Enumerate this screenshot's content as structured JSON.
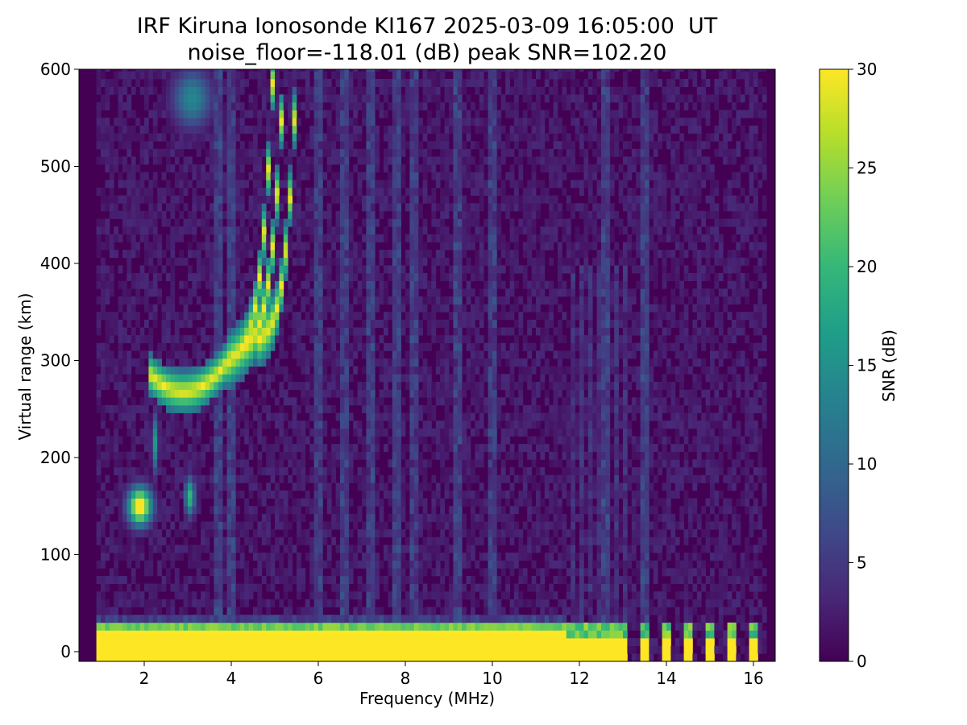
{
  "chart_data": {
    "type": "heatmap",
    "title": "IRF Kiruna Ionosonde KI167 2025-03-09 16:05:00  UT",
    "subtitle": "noise_floor=-118.01 (dB) peak SNR=102.20",
    "xlabel": "Frequency (MHz)",
    "ylabel": "Virtual range (km)",
    "xlim": [
      0.5,
      16.5
    ],
    "ylim": [
      -10,
      600
    ],
    "x_ticks": [
      2,
      4,
      6,
      8,
      10,
      12,
      14,
      16
    ],
    "y_ticks": [
      0,
      100,
      200,
      300,
      400,
      500,
      600
    ],
    "colorbar": {
      "label": "SNR (dB)",
      "range": [
        0,
        30
      ],
      "ticks": [
        0,
        5,
        10,
        15,
        20,
        25,
        30
      ],
      "colormap": "viridis"
    },
    "data_freq_range_mhz": [
      0.9,
      16.2
    ],
    "features": [
      {
        "freq_mhz": [
          0.9,
          11.7
        ],
        "range_km": [
          -5,
          30
        ],
        "snr_db": 30
      },
      {
        "freq_mhz": [
          1.5,
          2.4
        ],
        "range_km": [
          130,
          185
        ],
        "snr_db": 30
      },
      {
        "freq_mhz": [
          2.3,
          3.9
        ],
        "range_km": [
          260,
          310
        ],
        "snr_db": 28
      },
      {
        "freq_mhz": [
          3.9,
          5.6
        ],
        "range_km": [
          300,
          600
        ],
        "snr_db": 30
      },
      {
        "freq_mhz": [
          2.5,
          3.7
        ],
        "range_km": [
          530,
          600
        ],
        "snr_db": 15
      }
    ]
  },
  "colors": {
    "viridis": [
      "#440154",
      "#482878",
      "#3e4a89",
      "#31688e",
      "#26828e",
      "#1f9e89",
      "#35b779",
      "#6ece58",
      "#b5de2b",
      "#fde725"
    ]
  }
}
